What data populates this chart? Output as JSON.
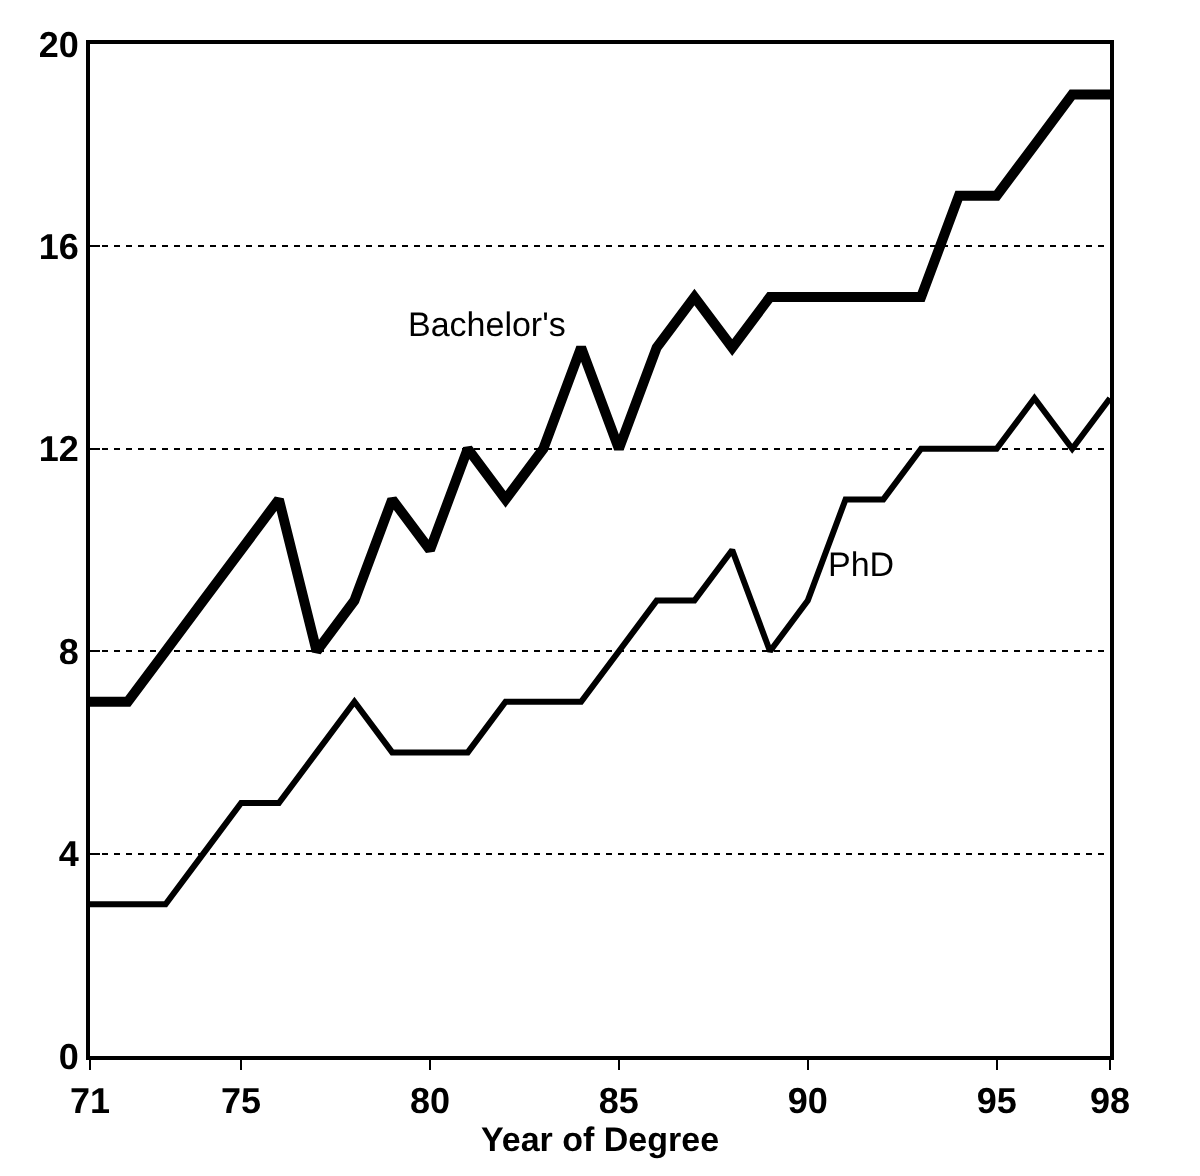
{
  "chart_data": {
    "type": "line",
    "xlabel": "Year of Degree",
    "x": [
      71,
      72,
      73,
      74,
      75,
      76,
      77,
      78,
      79,
      80,
      81,
      82,
      83,
      84,
      85,
      86,
      87,
      88,
      89,
      90,
      91,
      92,
      93,
      94,
      95,
      96,
      97,
      98
    ],
    "series": [
      {
        "name": "Bachelor's",
        "color": "#000000",
        "values": [
          7,
          7,
          8,
          9,
          10,
          11,
          8,
          9,
          11,
          10,
          12,
          11,
          12,
          14,
          12,
          14,
          15,
          14,
          15,
          15,
          15,
          15,
          15,
          17,
          17,
          18,
          19,
          19
        ]
      },
      {
        "name": "PhD",
        "color": "#000000",
        "values": [
          3,
          3,
          3,
          4,
          5,
          5,
          6,
          7,
          6,
          6,
          6,
          7,
          7,
          7,
          8,
          9,
          9,
          10,
          8,
          9,
          11,
          11,
          12,
          12,
          12,
          13,
          12,
          13
        ]
      }
    ],
    "xlim": [
      71,
      98
    ],
    "xticks": [
      71,
      75,
      80,
      85,
      90,
      95,
      98
    ],
    "ylim": [
      0,
      20
    ],
    "yticks": [
      0,
      4,
      8,
      12,
      16,
      20
    ],
    "grid": "y",
    "legend": false,
    "marker": "none",
    "line_style": "solid"
  }
}
